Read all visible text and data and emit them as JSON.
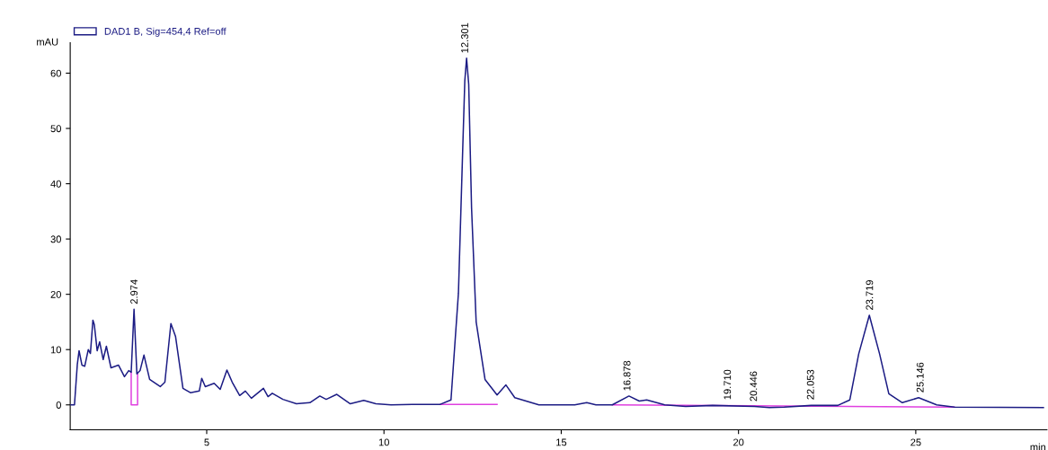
{
  "chart_data": {
    "type": "line",
    "ylabel": "mAU",
    "xlabel": "min",
    "xlim": [
      1.15,
      28.7
    ],
    "ylim": [
      -4.5,
      65.5
    ],
    "xticks": [
      5,
      10,
      15,
      20,
      25
    ],
    "yticks": [
      0,
      10,
      20,
      30,
      40,
      50,
      60
    ],
    "grid": false,
    "legend": "top left",
    "marker": "none",
    "line_style": "solid",
    "series": [
      {
        "name": "DAD1 B, Sig=454,4 Ref=off",
        "color": "#1c1c84",
        "x": [
          1.17,
          1.27,
          1.35,
          1.4,
          1.48,
          1.56,
          1.66,
          1.72,
          1.79,
          1.83,
          1.91,
          1.98,
          2.08,
          2.17,
          2.3,
          2.51,
          2.68,
          2.8,
          2.87,
          2.95,
          3.03,
          3.12,
          3.23,
          3.39,
          3.69,
          3.82,
          3.99,
          4.12,
          4.33,
          4.54,
          4.79,
          4.86,
          4.96,
          5.21,
          5.38,
          5.57,
          5.72,
          5.93,
          6.09,
          6.26,
          6.6,
          6.73,
          6.85,
          7.15,
          7.53,
          7.91,
          8.19,
          8.37,
          8.67,
          9.05,
          9.43,
          9.77,
          10.2,
          10.8,
          11.59,
          11.89,
          12.1,
          12.22,
          12.28,
          12.33,
          12.39,
          12.47,
          12.6,
          12.85,
          13.19,
          13.44,
          13.69,
          14.37,
          15.38,
          15.72,
          15.98,
          16.44,
          16.91,
          17.2,
          17.41,
          17.92,
          18.51,
          19.27,
          20.45,
          20.87,
          21.29,
          22.05,
          22.8,
          23.14,
          23.39,
          23.69,
          23.98,
          24.24,
          24.62,
          25.08,
          25.59,
          26.09,
          28.6
        ],
        "values": [
          0,
          0,
          7.3,
          9.8,
          7.2,
          7.0,
          10.0,
          9.3,
          15.3,
          14.5,
          9.8,
          11.4,
          8.2,
          10.6,
          6.7,
          7.2,
          5.1,
          6.2,
          5.9,
          17.3,
          5.6,
          6.2,
          9.0,
          4.6,
          3.3,
          4.1,
          14.7,
          12.4,
          3.0,
          2.2,
          2.5,
          4.8,
          3.3,
          3.9,
          2.8,
          6.3,
          4.1,
          1.7,
          2.5,
          1.2,
          3.0,
          1.5,
          2.1,
          1.0,
          0.2,
          0.4,
          1.6,
          1.0,
          1.9,
          0.2,
          0.8,
          0.2,
          0,
          0.1,
          0.1,
          0.9,
          20.2,
          46,
          58.6,
          62.7,
          58,
          35.7,
          15,
          4.6,
          1.8,
          3.6,
          1.3,
          0,
          0,
          0.4,
          0,
          0,
          1.6,
          0.7,
          0.9,
          0,
          -0.3,
          -0.1,
          -0.3,
          -0.5,
          -0.4,
          -0.1,
          -0.1,
          0.9,
          9.2,
          16.2,
          9.2,
          2.0,
          0.4,
          1.3,
          0,
          -0.4,
          -0.5
        ]
      },
      {
        "color": "#e040e0",
        "x": [
          2.87,
          2.87,
          3.05,
          3.05
        ],
        "values": [
          5.9,
          0,
          0,
          5.6
        ]
      },
      {
        "color": "#e040e0",
        "x": [
          11.59,
          13.19
        ],
        "values": [
          0.1,
          0.1
        ]
      },
      {
        "color": "#e040e0",
        "x": [
          16.44,
          26.09
        ],
        "values": [
          0,
          -0.4
        ]
      }
    ],
    "annotations": [
      {
        "text": "2.974",
        "x": 2.974,
        "y": 17.3
      },
      {
        "text": "12.301",
        "x": 12.301,
        "y": 62.7
      },
      {
        "text": "16.878",
        "x": 16.878,
        "y": 1.6
      },
      {
        "text": "19.710",
        "x": 19.71,
        "y": 0
      },
      {
        "text": "20.446",
        "x": 20.446,
        "y": -0.3
      },
      {
        "text": "22.053",
        "x": 22.053,
        "y": 0
      },
      {
        "text": "23.719",
        "x": 23.719,
        "y": 16.2
      },
      {
        "text": "25.146",
        "x": 25.146,
        "y": 1.3
      }
    ]
  }
}
